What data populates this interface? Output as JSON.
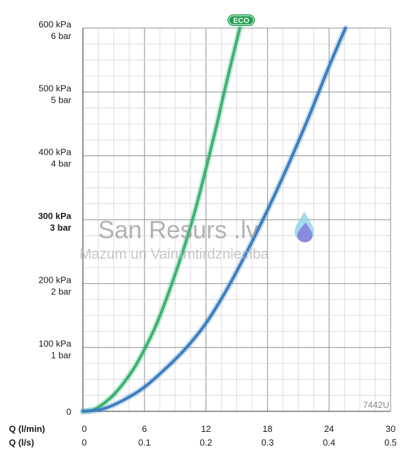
{
  "chart_data": {
    "type": "line",
    "title": "",
    "x_units_label": "Q (l/min)",
    "x2_units_label": "Q (l/s)",
    "x_ticks": [
      "0",
      "6",
      "12",
      "18",
      "24",
      "30"
    ],
    "x2_ticks": [
      "0",
      "0.1",
      "0.2",
      "0.3",
      "0.4",
      "0.5"
    ],
    "xlim": [
      0,
      30
    ],
    "ylim": [
      0,
      600
    ],
    "y_ticks": [
      {
        "value": 0,
        "kpa": "0",
        "bar": ""
      },
      {
        "value": 100,
        "kpa": "100 kPa",
        "bar": "1 bar"
      },
      {
        "value": 200,
        "kpa": "200 kPa",
        "bar": "2 bar"
      },
      {
        "value": 300,
        "kpa": "300 kPa",
        "bar": "3 bar",
        "bold": true
      },
      {
        "value": 400,
        "kpa": "400 kPa",
        "bar": "4 bar"
      },
      {
        "value": 500,
        "kpa": "500 kPa",
        "bar": "5 bar"
      },
      {
        "value": 600,
        "kpa": "600 kPa",
        "bar": "6 bar"
      }
    ],
    "grid": true,
    "series": [
      {
        "name": "ECO",
        "color": "#3cb371",
        "x": [
          0,
          1,
          2,
          3,
          4,
          5,
          6,
          7,
          8,
          9,
          10,
          11,
          12,
          13,
          14,
          15.3
        ],
        "y": [
          0,
          2,
          12,
          26,
          45,
          68,
          97,
          130,
          170,
          215,
          263,
          318,
          380,
          445,
          515,
          600
        ]
      },
      {
        "name": "",
        "color": "#3a7fc1",
        "x": [
          0,
          2,
          4,
          6,
          8,
          10,
          12,
          14,
          16,
          18,
          20,
          22,
          24,
          25.6
        ],
        "y": [
          0,
          4,
          18,
          38,
          66,
          98,
          138,
          190,
          250,
          315,
          385,
          460,
          540,
          600
        ]
      }
    ]
  },
  "watermark": {
    "main": "San Resurs .lv",
    "sub": "Mazum un Vairumtirdzniecība"
  },
  "eco_badge": "ECO",
  "product_code": "7442U",
  "colors": {
    "eco": "#3cb371",
    "standard": "#3a7fc1",
    "grid_major": "#8c8c8c",
    "grid_minor": "#d4d4d4"
  }
}
